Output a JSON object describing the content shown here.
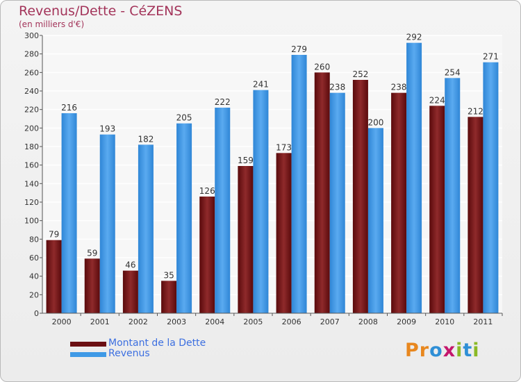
{
  "header": {
    "title": "Revenus/Dette - CéZENS",
    "subtitle": "(en milliers d'€)"
  },
  "chart_data": {
    "type": "bar",
    "categories": [
      "2000",
      "2001",
      "2002",
      "2003",
      "2004",
      "2005",
      "2006",
      "2007",
      "2008",
      "2009",
      "2010",
      "2011"
    ],
    "series": [
      {
        "name": "Montant de la Dette",
        "color": "#6b0f12",
        "values": [
          79,
          59,
          46,
          35,
          126,
          159,
          173,
          260,
          252,
          238,
          224,
          212
        ]
      },
      {
        "name": "Revenus",
        "color": "#3f9ae6",
        "values": [
          216,
          193,
          182,
          205,
          222,
          241,
          279,
          238,
          200,
          292,
          254,
          271
        ]
      }
    ],
    "ylim": [
      0,
      300
    ],
    "yticks": [
      0,
      20,
      40,
      60,
      80,
      100,
      120,
      140,
      160,
      180,
      200,
      220,
      240,
      260,
      280,
      300
    ],
    "grid": true,
    "legend_position": "bottom-left"
  },
  "legend": {
    "debt_label": "Montant de la Dette",
    "revenue_label": "Revenus"
  },
  "logo": {
    "text": "Proxiti",
    "letters": [
      "P",
      "r",
      "o",
      "x",
      "i",
      "t",
      "i"
    ],
    "colors": [
      "#e8871e",
      "#e8871e",
      "#2f8fd6",
      "#c4166c",
      "#8ab926",
      "#2f8fd6",
      "#8ab926"
    ]
  }
}
